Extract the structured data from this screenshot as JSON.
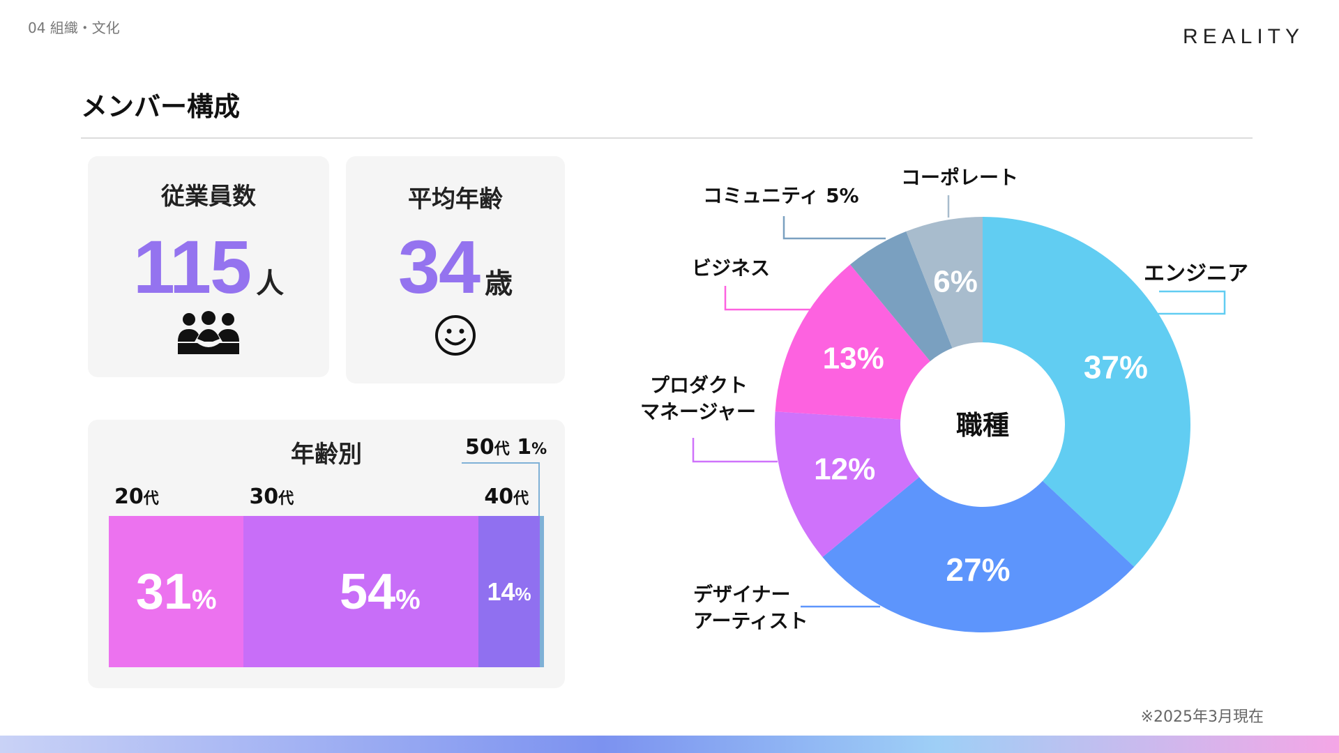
{
  "header": {
    "section": "04 組織・文化",
    "brand": "REALITY",
    "title": "メンバー構成"
  },
  "employees": {
    "title": "従業員数",
    "value": "115",
    "unit": "人",
    "icon": "people-group-icon"
  },
  "avg_age": {
    "title": "平均年齢",
    "value": "34",
    "unit": "歳",
    "icon": "smiley-face-icon"
  },
  "age_breakdown": {
    "title": "年齢別",
    "segments": [
      {
        "decade": "20",
        "suffix": "代",
        "percent": 31,
        "pct_label": "31",
        "pct_sign": "%",
        "color": "#ec72ef"
      },
      {
        "decade": "30",
        "suffix": "代",
        "percent": 54,
        "pct_label": "54",
        "pct_sign": "%",
        "color": "#c86ef8"
      },
      {
        "decade": "40",
        "suffix": "代",
        "percent": 14,
        "pct_label": "14",
        "pct_sign": "%",
        "color": "#9070f0"
      },
      {
        "decade": "50",
        "suffix": "代",
        "percent": 1,
        "pct_label": "1",
        "pct_sign": "%",
        "color": "#7fb1d6"
      }
    ]
  },
  "chart_data": {
    "type": "pie",
    "center_label": "職種",
    "slices": [
      {
        "name": "エンジニア",
        "value": 37,
        "value_label": "37%",
        "color": "#61cdf2"
      },
      {
        "name": "デザイナー\nアーティスト",
        "value": 27,
        "value_label": "27%",
        "color": "#5d95fc"
      },
      {
        "name": "プロダクト\nマネージャー",
        "value": 12,
        "value_label": "12%",
        "color": "#cf72fb"
      },
      {
        "name": "ビジネス",
        "value": 13,
        "value_label": "13%",
        "color": "#fd62e0"
      },
      {
        "name": "コミュニティ 5%",
        "value": 5,
        "value_label": "",
        "color": "#7aa0c0"
      },
      {
        "name": "コーポレート",
        "value": 6,
        "value_label": "6%",
        "color": "#a8bccd"
      }
    ]
  },
  "footnote": "※2025年3月現在"
}
